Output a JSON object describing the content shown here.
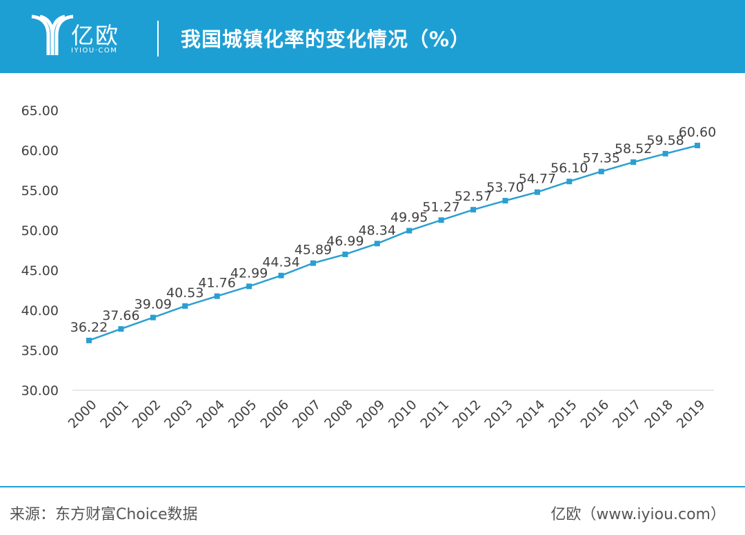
{
  "header": {
    "logo_text": "亿欧",
    "logo_sub": "IYIOU·COM",
    "title": "我国城镇化率的变化情况（%）"
  },
  "footer": {
    "source": "来源：东方财富Choice数据",
    "credit": "亿欧（www.iyiou.com）"
  },
  "colors": {
    "header_bg": "#1e9fd4",
    "series": "#2a9fd0"
  },
  "chart_data": {
    "type": "line",
    "title": "我国城镇化率的变化情况（%）",
    "xlabel": "",
    "ylabel": "",
    "ylim": [
      30,
      65
    ],
    "yticks": [
      "30.00",
      "35.00",
      "40.00",
      "45.00",
      "50.00",
      "55.00",
      "60.00",
      "65.00"
    ],
    "grid": false,
    "legend": "none",
    "categories": [
      "2000",
      "2001",
      "2002",
      "2003",
      "2004",
      "2005",
      "2006",
      "2007",
      "2008",
      "2009",
      "2010",
      "2011",
      "2012",
      "2013",
      "2014",
      "2015",
      "2016",
      "2017",
      "2018",
      "2019"
    ],
    "series": [
      {
        "values": [
          36.22,
          37.66,
          39.09,
          40.53,
          41.76,
          42.99,
          44.34,
          45.89,
          46.99,
          48.34,
          49.95,
          51.27,
          52.57,
          53.7,
          54.77,
          56.1,
          57.35,
          58.52,
          59.58,
          60.6
        ],
        "labels": [
          "36.22",
          "37.66",
          "39.09",
          "40.53",
          "41.76",
          "42.99",
          "44.34",
          "45.89",
          "46.99",
          "48.34",
          "49.95",
          "51.27",
          "52.57",
          "53.70",
          "54.77",
          "56.10",
          "57.35",
          "58.52",
          "59.58",
          "60.60"
        ]
      }
    ]
  }
}
